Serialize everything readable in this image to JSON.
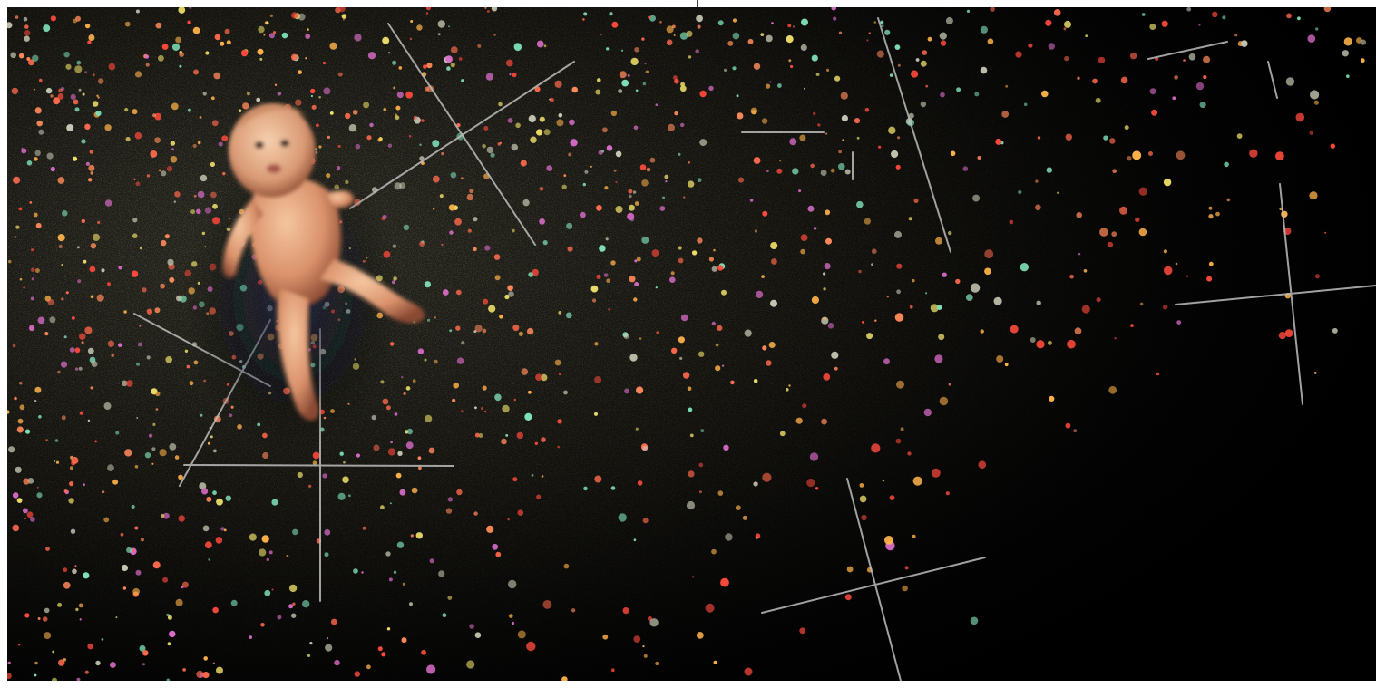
{
  "image": {
    "subject": "infant-figure-over-speckled-cosmic-field",
    "background_color": "#000000",
    "frame_color": "#ffffff",
    "speckle_palette": [
      "#ff4a3d",
      "#ff6a4d",
      "#ffb24a",
      "#f2e36b",
      "#7fe0b8",
      "#d96cc8",
      "#c8c8b4",
      "#ff8a5a"
    ],
    "crosshair_color": "#bdbdbd",
    "crosshair_count": 9
  }
}
